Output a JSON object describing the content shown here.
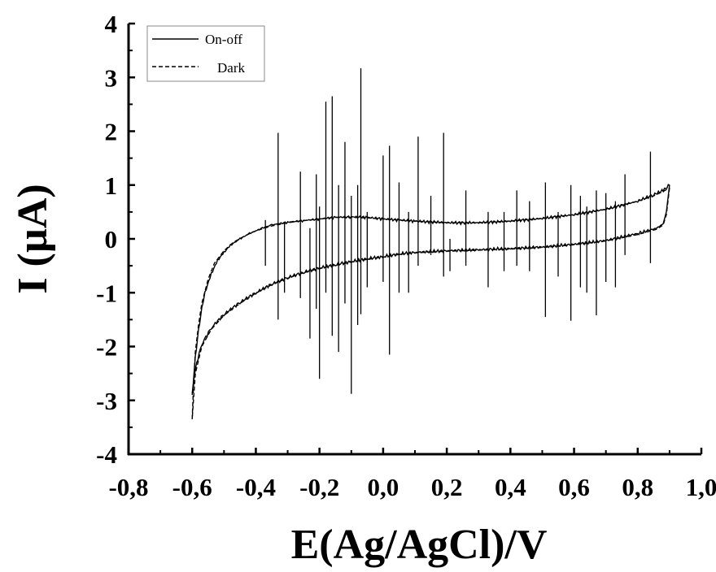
{
  "chart_data": {
    "type": "line",
    "xlabel": "E(Ag/AgCl)/V",
    "ylabel": "I (µA)",
    "xlim": [
      -0.8,
      1.0
    ],
    "ylim": [
      -4,
      4
    ],
    "x_ticks": [
      -0.8,
      -0.6,
      -0.4,
      -0.2,
      0.0,
      0.2,
      0.4,
      0.6,
      0.8,
      1.0
    ],
    "x_tick_labels": [
      "-0,8",
      "-0,6",
      "-0,4",
      "-0,2",
      "0,0",
      "0,2",
      "0,4",
      "0,6",
      "0,8",
      "1,0"
    ],
    "y_ticks": [
      -4,
      -3,
      -2,
      -1,
      0,
      1,
      2,
      3,
      4
    ],
    "y_tick_labels": [
      "-4",
      "-3",
      "-2",
      "-1",
      "0",
      "1",
      "2",
      "3",
      "4"
    ],
    "grid": false,
    "legend_position": "top-left",
    "series": [
      {
        "name": "On-off",
        "style": "solid",
        "color": "#000000",
        "upper": [
          [
            -0.6,
            -2.9
          ],
          [
            -0.59,
            -2.2
          ],
          [
            -0.58,
            -1.7
          ],
          [
            -0.57,
            -1.3
          ],
          [
            -0.56,
            -1.0
          ],
          [
            -0.54,
            -0.65
          ],
          [
            -0.52,
            -0.4
          ],
          [
            -0.5,
            -0.25
          ],
          [
            -0.48,
            -0.12
          ],
          [
            -0.45,
            0.0
          ],
          [
            -0.42,
            0.1
          ],
          [
            -0.38,
            0.2
          ],
          [
            -0.35,
            0.26
          ],
          [
            -0.3,
            0.31
          ],
          [
            -0.25,
            0.34
          ],
          [
            -0.2,
            0.37
          ],
          [
            -0.15,
            0.4
          ],
          [
            -0.1,
            0.41
          ],
          [
            -0.05,
            0.4
          ],
          [
            0.0,
            0.37
          ],
          [
            0.05,
            0.35
          ],
          [
            0.1,
            0.33
          ],
          [
            0.2,
            0.3
          ],
          [
            0.3,
            0.3
          ],
          [
            0.4,
            0.33
          ],
          [
            0.5,
            0.38
          ],
          [
            0.6,
            0.45
          ],
          [
            0.7,
            0.55
          ],
          [
            0.8,
            0.7
          ],
          [
            0.85,
            0.82
          ],
          [
            0.88,
            0.9
          ],
          [
            0.9,
            1.0
          ]
        ],
        "lower": [
          [
            0.9,
            1.0
          ],
          [
            0.89,
            0.5
          ],
          [
            0.88,
            0.28
          ],
          [
            0.86,
            0.2
          ],
          [
            0.8,
            0.1
          ],
          [
            0.7,
            -0.03
          ],
          [
            0.6,
            -0.1
          ],
          [
            0.5,
            -0.15
          ],
          [
            0.4,
            -0.18
          ],
          [
            0.3,
            -0.2
          ],
          [
            0.2,
            -0.22
          ],
          [
            0.1,
            -0.25
          ],
          [
            0.05,
            -0.28
          ],
          [
            0.0,
            -0.33
          ],
          [
            -0.05,
            -0.37
          ],
          [
            -0.1,
            -0.42
          ],
          [
            -0.15,
            -0.48
          ],
          [
            -0.2,
            -0.54
          ],
          [
            -0.25,
            -0.62
          ],
          [
            -0.3,
            -0.72
          ],
          [
            -0.35,
            -0.84
          ],
          [
            -0.4,
            -1.0
          ],
          [
            -0.45,
            -1.18
          ],
          [
            -0.5,
            -1.4
          ],
          [
            -0.54,
            -1.65
          ],
          [
            -0.57,
            -1.95
          ],
          [
            -0.59,
            -2.4
          ],
          [
            -0.6,
            -2.9
          ]
        ],
        "spikes": [
          [
            -0.37,
            0.35,
            -0.5
          ],
          [
            -0.33,
            1.97,
            -1.5
          ],
          [
            -0.31,
            -1.0,
            0.3
          ],
          [
            -0.26,
            1.25,
            -1.1
          ],
          [
            -0.23,
            -1.85,
            0.2
          ],
          [
            -0.21,
            1.2,
            -1.3
          ],
          [
            -0.2,
            -2.6,
            0.6
          ],
          [
            -0.18,
            2.55,
            -1.0
          ],
          [
            -0.16,
            2.65,
            -1.8
          ],
          [
            -0.14,
            1.0,
            -2.1
          ],
          [
            -0.12,
            1.8,
            -1.2
          ],
          [
            -0.1,
            -2.88,
            0.8
          ],
          [
            -0.08,
            1.0,
            -1.6
          ],
          [
            -0.07,
            3.17,
            -1.4
          ],
          [
            -0.05,
            -0.9,
            0.5
          ],
          [
            0.0,
            1.55,
            -0.8
          ],
          [
            0.02,
            1.73,
            -2.15
          ],
          [
            0.05,
            1.05,
            -1.0
          ],
          [
            0.08,
            -1.0,
            0.5
          ],
          [
            0.11,
            1.9,
            -0.5
          ],
          [
            0.15,
            0.8,
            -0.3
          ],
          [
            0.19,
            1.97,
            -0.7
          ],
          [
            0.21,
            -0.6,
            0.0
          ],
          [
            0.26,
            0.9,
            -0.5
          ],
          [
            0.33,
            -0.9,
            0.5
          ],
          [
            0.38,
            0.5,
            -0.6
          ],
          [
            0.42,
            0.9,
            -0.5
          ],
          [
            0.46,
            0.7,
            -0.6
          ],
          [
            0.51,
            1.05,
            -1.45
          ],
          [
            0.55,
            0.5,
            -0.7
          ],
          [
            0.59,
            1.0,
            -1.52
          ],
          [
            0.62,
            0.8,
            -0.9
          ],
          [
            0.64,
            0.6,
            -1.0
          ],
          [
            0.67,
            0.9,
            -1.42
          ],
          [
            0.7,
            0.85,
            -0.8
          ],
          [
            0.73,
            0.7,
            -0.9
          ],
          [
            0.76,
            1.2,
            -0.3
          ],
          [
            0.84,
            1.62,
            -0.45
          ]
        ]
      },
      {
        "name": "Dark",
        "style": "dashed",
        "color": "#000000",
        "upper": [
          [
            -0.6,
            -3.35
          ],
          [
            -0.595,
            -2.6
          ],
          [
            -0.59,
            -2.1
          ],
          [
            -0.58,
            -1.6
          ],
          [
            -0.57,
            -1.2
          ],
          [
            -0.55,
            -0.75
          ],
          [
            -0.53,
            -0.45
          ],
          [
            -0.5,
            -0.22
          ],
          [
            -0.47,
            -0.06
          ],
          [
            -0.43,
            0.07
          ],
          [
            -0.4,
            0.15
          ],
          [
            -0.35,
            0.24
          ],
          [
            -0.3,
            0.3
          ],
          [
            -0.25,
            0.34
          ],
          [
            -0.2,
            0.37
          ],
          [
            -0.15,
            0.4
          ],
          [
            -0.1,
            0.4
          ],
          [
            -0.05,
            0.39
          ],
          [
            0.0,
            0.37
          ],
          [
            0.05,
            0.35
          ],
          [
            0.1,
            0.33
          ],
          [
            0.2,
            0.3
          ],
          [
            0.3,
            0.3
          ],
          [
            0.4,
            0.33
          ],
          [
            0.5,
            0.38
          ],
          [
            0.6,
            0.45
          ],
          [
            0.7,
            0.55
          ],
          [
            0.8,
            0.7
          ],
          [
            0.85,
            0.8
          ],
          [
            0.88,
            0.88
          ],
          [
            0.9,
            0.95
          ]
        ],
        "lower": [
          [
            0.9,
            0.95
          ],
          [
            0.89,
            0.45
          ],
          [
            0.88,
            0.26
          ],
          [
            0.86,
            0.18
          ],
          [
            0.8,
            0.08
          ],
          [
            0.7,
            -0.04
          ],
          [
            0.6,
            -0.11
          ],
          [
            0.5,
            -0.16
          ],
          [
            0.4,
            -0.19
          ],
          [
            0.3,
            -0.21
          ],
          [
            0.2,
            -0.23
          ],
          [
            0.1,
            -0.26
          ],
          [
            0.05,
            -0.29
          ],
          [
            0.0,
            -0.34
          ],
          [
            -0.05,
            -0.38
          ],
          [
            -0.1,
            -0.43
          ],
          [
            -0.15,
            -0.49
          ],
          [
            -0.2,
            -0.55
          ],
          [
            -0.25,
            -0.63
          ],
          [
            -0.3,
            -0.73
          ],
          [
            -0.35,
            -0.85
          ],
          [
            -0.4,
            -1.01
          ],
          [
            -0.45,
            -1.2
          ],
          [
            -0.5,
            -1.42
          ],
          [
            -0.54,
            -1.68
          ],
          [
            -0.57,
            -2.0
          ],
          [
            -0.59,
            -2.5
          ],
          [
            -0.6,
            -3.35
          ]
        ]
      }
    ]
  }
}
